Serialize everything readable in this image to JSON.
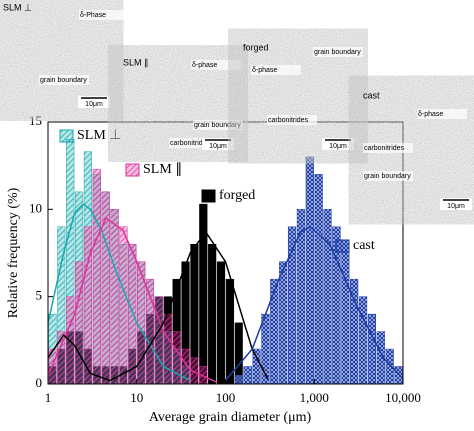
{
  "chart_data": {
    "type": "histogram",
    "xlabel": "Average grain diameter (μm)",
    "ylabel": "Relative frequency (%)",
    "log_x": true,
    "xlim": [
      1,
      10000
    ],
    "xticks": [
      1,
      10,
      100,
      {
        "value": 1000,
        "label": "1,000"
      },
      {
        "value": 10000,
        "label": "10,000"
      }
    ],
    "ylim": [
      0,
      15
    ],
    "yticks": [
      0,
      5,
      10,
      15
    ],
    "series": [
      {
        "name": "SLM ⊥",
        "color": "#17a9ad",
        "hatch": "diagonal",
        "bins": [
          1,
          1.26,
          1.58,
          2,
          2.51,
          3.16,
          3.98,
          5.01,
          6.31,
          7.94,
          10,
          12.6,
          15.8,
          20,
          25.1,
          31.6,
          39.8
        ],
        "values": [
          4,
          9,
          14,
          11,
          13.3,
          12,
          11,
          10,
          8,
          8,
          7,
          6,
          5,
          3,
          2,
          1
        ]
      },
      {
        "name": "SLM ∥",
        "color": "#e0319a",
        "hatch": "diagonal",
        "bins": [
          1,
          1.26,
          1.58,
          2,
          2.51,
          3.16,
          3.98,
          5.01,
          6.31,
          7.94,
          10,
          12.6,
          15.8,
          20,
          25.1,
          31.6,
          39.8,
          50.1,
          63.1
        ],
        "values": [
          2,
          3,
          5,
          7,
          9,
          12.3,
          11,
          10,
          9,
          8,
          7,
          6,
          5,
          4,
          3,
          2,
          1.5,
          1
        ]
      },
      {
        "name": "forged",
        "color": "#000000",
        "hatch": "solid",
        "bins": [
          1,
          1.26,
          1.58,
          2,
          2.51,
          3.16,
          3.98,
          5.01,
          6.31,
          7.94,
          10,
          12.6,
          15.8,
          20,
          25.1,
          31.6,
          39.8,
          50.1,
          63.1,
          79.4,
          100,
          126,
          158
        ],
        "values": [
          1,
          2,
          3,
          3,
          2,
          1,
          1,
          1,
          1,
          2,
          3,
          4,
          5,
          5,
          6,
          7,
          8,
          10.3,
          8,
          7,
          6,
          3.5
        ]
      },
      {
        "name": "cast",
        "color": "#1c3ca8",
        "hatch": "cross",
        "bins": [
          126,
          158,
          200,
          251,
          316,
          398,
          501,
          631,
          794,
          1000,
          1260,
          1580,
          2000,
          2510,
          3160,
          3980,
          5010,
          6310,
          7940,
          10000
        ],
        "values": [
          0.5,
          1,
          2,
          4,
          6,
          7,
          9,
          10,
          13,
          12,
          10,
          9,
          8,
          6,
          5,
          4,
          3,
          2,
          1
        ]
      }
    ],
    "fit_curves": [
      {
        "color": "#17a9ad",
        "x": [
          1,
          1.5,
          2,
          2.5,
          3,
          4,
          6,
          10,
          20,
          40
        ],
        "values": [
          3.5,
          7.5,
          9.8,
          10.3,
          10,
          8.8,
          6.3,
          3.5,
          1,
          0.2
        ]
      },
      {
        "color": "#e0319a",
        "x": [
          1,
          2,
          3,
          4.5,
          7,
          10,
          20,
          40,
          80
        ],
        "values": [
          0.5,
          4,
          7.5,
          9.5,
          8.8,
          7,
          3,
          0.8,
          0.1
        ]
      },
      {
        "color": "#000000",
        "x": [
          1,
          1.5,
          2,
          3,
          5,
          10,
          20,
          40,
          60,
          100,
          200,
          300
        ],
        "values": [
          1.5,
          2.8,
          2.2,
          0.6,
          0.2,
          1,
          3.5,
          7.5,
          8.7,
          7,
          2,
          0.3
        ]
      },
      {
        "color": "#1c3ca8",
        "x": [
          100,
          200,
          400,
          700,
          900,
          1500,
          3000,
          6000,
          10000
        ],
        "values": [
          0.2,
          2,
          6,
          8.7,
          9,
          8,
          4.5,
          1.5,
          0.3
        ]
      }
    ],
    "insets": [
      {
        "title": "SLM ⊥",
        "labels": [
          "δ-Phase",
          "grain boundary"
        ],
        "scale": "10μm"
      },
      {
        "title": "SLM ∥",
        "labels": [
          "δ-phase",
          "grain boundary",
          "carbonitrides"
        ],
        "scale": "10μm"
      },
      {
        "title": "forged",
        "labels": [
          "grain boundary",
          "δ-phase",
          "carbonitrides"
        ],
        "scale": "10μm"
      },
      {
        "title": "cast",
        "labels": [
          "δ-phase",
          "carbonitrides",
          "grain boundary"
        ],
        "scale": "10μm"
      }
    ]
  }
}
